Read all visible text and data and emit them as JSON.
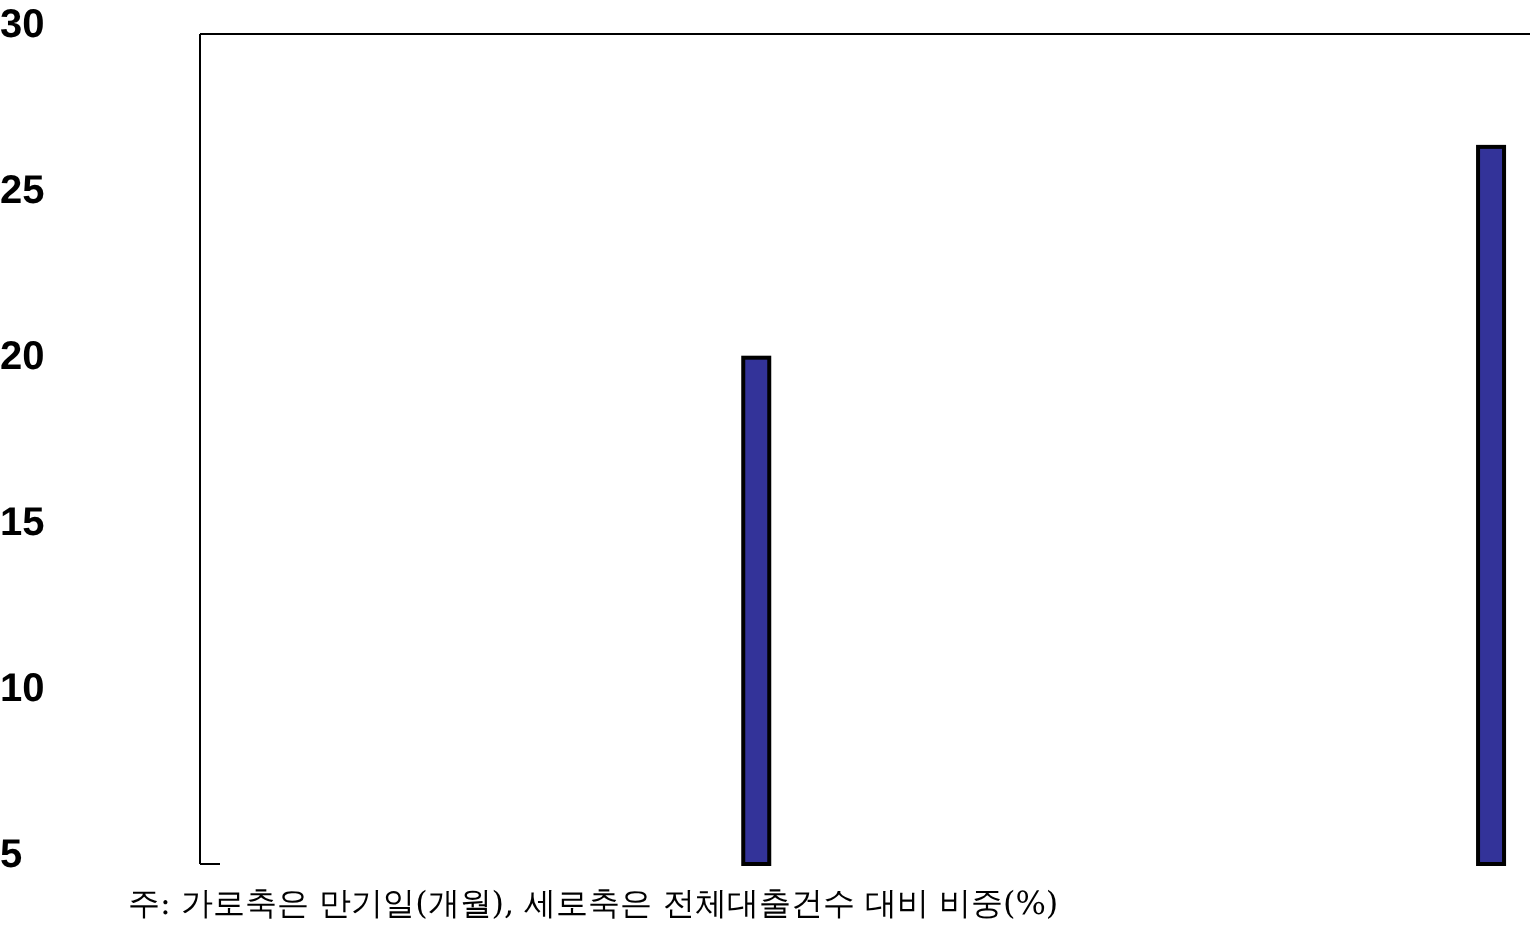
{
  "chart_data": {
    "type": "bar",
    "categories": [
      null,
      null
    ],
    "values": [
      20.25,
      26.6
    ],
    "color": "#333399",
    "ylim": [
      5,
      30
    ],
    "yticks": [
      5,
      10,
      15,
      20,
      25,
      30
    ],
    "grid": false,
    "tick_labels": "y",
    "annotations": [
      "주: 가로축은 만기일(개월), 세로축은 전체대출건수 대비 비중(%)"
    ]
  }
}
